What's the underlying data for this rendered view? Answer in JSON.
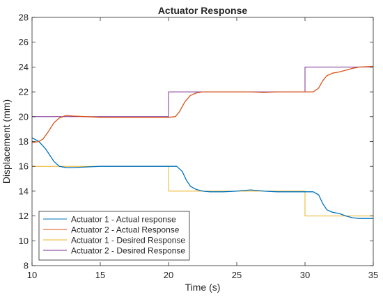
{
  "chart_data": {
    "type": "line",
    "title": "Actuator Response",
    "xlabel": "Time (s)",
    "ylabel": "Displacement (mm)",
    "xlim": [
      10,
      35
    ],
    "ylim": [
      8,
      28
    ],
    "xticks": [
      10,
      15,
      20,
      25,
      30,
      35
    ],
    "yticks": [
      8,
      10,
      12,
      14,
      16,
      18,
      20,
      22,
      24,
      26,
      28
    ],
    "grid": false,
    "legend_position": "bottom-left",
    "series": [
      {
        "name": "Actuator 1 - Actual response",
        "color": "#0072BD",
        "x": [
          10,
          10.5,
          11,
          11.3,
          11.6,
          12,
          12.5,
          13,
          14,
          15,
          16,
          17,
          18,
          19,
          20,
          20.3,
          20.6,
          21,
          21.3,
          21.6,
          22,
          22.5,
          23,
          24,
          25,
          26,
          27,
          28,
          29,
          30,
          30.6,
          31,
          31.3,
          31.6,
          32,
          32.5,
          33,
          33.5,
          34,
          35
        ],
        "y": [
          18.3,
          18.0,
          17.4,
          16.9,
          16.4,
          16.0,
          15.9,
          15.9,
          15.95,
          16.0,
          16.0,
          16.0,
          16.0,
          16.0,
          16.0,
          16.0,
          16.0,
          15.6,
          14.9,
          14.4,
          14.15,
          14.0,
          13.95,
          13.95,
          14.0,
          14.1,
          14.0,
          13.95,
          13.95,
          13.95,
          13.95,
          13.7,
          13.0,
          12.5,
          12.3,
          12.2,
          12.0,
          11.85,
          11.8,
          11.8
        ]
      },
      {
        "name": "Actuator 2 - Actual Response",
        "color": "#D95319",
        "x": [
          10,
          10.5,
          10.8,
          11.2,
          11.6,
          12,
          12.5,
          13,
          14,
          15,
          16,
          17,
          18,
          19,
          20,
          20.5,
          20.8,
          21.2,
          21.6,
          22,
          22.5,
          23,
          24,
          25,
          26,
          27,
          28,
          29,
          30,
          30.6,
          31,
          31.3,
          31.6,
          32,
          32.5,
          33,
          33.5,
          34,
          35
        ],
        "y": [
          17.9,
          18.0,
          18.2,
          18.8,
          19.5,
          19.9,
          20.1,
          20.05,
          20.0,
          19.95,
          19.95,
          19.95,
          19.95,
          19.95,
          19.95,
          20.0,
          20.4,
          21.2,
          21.7,
          21.9,
          22.0,
          22.0,
          22.0,
          22.0,
          22.0,
          21.95,
          22.0,
          22.0,
          22.0,
          22.0,
          22.3,
          22.9,
          23.3,
          23.5,
          23.6,
          23.75,
          23.9,
          24.0,
          24.05
        ]
      },
      {
        "name": "Actuator 1 - Desired Response",
        "color": "#EDB120",
        "x": [
          10,
          20,
          20,
          30,
          30,
          35
        ],
        "y": [
          16,
          16,
          14,
          14,
          12,
          12
        ]
      },
      {
        "name": "Actuator 2 - Desired Response",
        "color": "#7E2F8E",
        "x": [
          10,
          20,
          20,
          30,
          30,
          35
        ],
        "y": [
          20,
          20,
          22,
          22,
          24,
          24
        ]
      }
    ]
  }
}
